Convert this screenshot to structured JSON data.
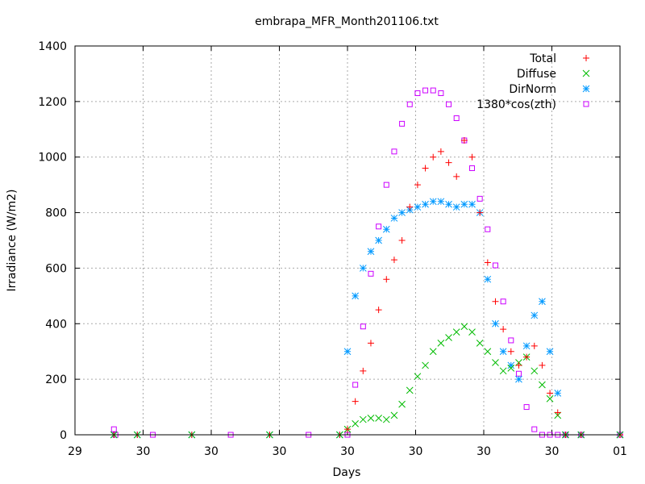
{
  "chart_data": {
    "type": "scatter",
    "title": "embrapa_MFR_Month201106.txt",
    "xlabel": "Days",
    "ylabel": "Irradiance (W/m2)",
    "ylim": [
      0,
      1400
    ],
    "xlim": [
      0,
      7
    ],
    "yticks": [
      0,
      200,
      400,
      600,
      800,
      1000,
      1200,
      1400
    ],
    "xtick_labels": [
      "29",
      "30",
      "30",
      "30",
      "30",
      "30",
      "30",
      "30",
      "01"
    ],
    "grid": true,
    "legend_position": "top-right",
    "series": [
      {
        "name": "Total",
        "color": "#ff0000",
        "marker": "plus",
        "x": [
          0.5,
          0.8,
          1.5,
          2.5,
          3.4,
          3.5,
          3.6,
          3.7,
          3.8,
          3.9,
          4.0,
          4.1,
          4.2,
          4.3,
          4.4,
          4.5,
          4.6,
          4.7,
          4.8,
          4.9,
          5.0,
          5.1,
          5.2,
          5.3,
          5.4,
          5.5,
          5.6,
          5.7,
          5.8,
          5.9,
          6.0,
          6.1,
          6.2,
          6.3,
          6.5,
          7.0
        ],
        "y": [
          0,
          0,
          0,
          0,
          0,
          20,
          120,
          230,
          330,
          450,
          560,
          630,
          700,
          820,
          900,
          960,
          1000,
          1020,
          980,
          930,
          1060,
          1000,
          800,
          620,
          480,
          380,
          300,
          250,
          280,
          320,
          250,
          150,
          80,
          0,
          0,
          0
        ]
      },
      {
        "name": "Diffuse",
        "color": "#00bb00",
        "marker": "x",
        "x": [
          0.5,
          0.8,
          1.5,
          2.5,
          3.4,
          3.5,
          3.6,
          3.7,
          3.8,
          3.9,
          4.0,
          4.1,
          4.2,
          4.3,
          4.4,
          4.5,
          4.6,
          4.7,
          4.8,
          4.9,
          5.0,
          5.1,
          5.2,
          5.3,
          5.4,
          5.5,
          5.6,
          5.7,
          5.8,
          5.9,
          6.0,
          6.1,
          6.2,
          6.3,
          6.5,
          7.0
        ],
        "y": [
          0,
          0,
          0,
          0,
          0,
          20,
          40,
          55,
          60,
          60,
          55,
          70,
          110,
          160,
          210,
          250,
          300,
          330,
          350,
          370,
          390,
          370,
          330,
          300,
          260,
          230,
          240,
          260,
          280,
          230,
          180,
          130,
          70,
          0,
          0,
          0
        ]
      },
      {
        "name": "DirNorm",
        "color": "#0099ff",
        "marker": "star",
        "x": [
          0.5,
          0.8,
          1.5,
          2.5,
          3.4,
          3.5,
          3.6,
          3.7,
          3.8,
          3.9,
          4.0,
          4.1,
          4.2,
          4.3,
          4.4,
          4.5,
          4.6,
          4.7,
          4.8,
          4.9,
          5.0,
          5.1,
          5.2,
          5.3,
          5.4,
          5.5,
          5.6,
          5.7,
          5.8,
          5.9,
          6.0,
          6.1,
          6.2,
          6.3,
          6.5,
          7.0
        ],
        "y": [
          0,
          0,
          0,
          0,
          0,
          300,
          500,
          600,
          660,
          700,
          740,
          780,
          800,
          810,
          820,
          830,
          840,
          840,
          830,
          820,
          830,
          830,
          800,
          560,
          400,
          300,
          250,
          200,
          320,
          430,
          480,
          300,
          150,
          0,
          0,
          0
        ]
      },
      {
        "name": "1380*cos(zth)",
        "color": "#cc00ff",
        "marker": "square",
        "x": [
          0.5,
          0.52,
          1.0,
          2.0,
          3.0,
          3.5,
          3.6,
          3.7,
          3.8,
          3.9,
          4.0,
          4.1,
          4.2,
          4.3,
          4.4,
          4.5,
          4.6,
          4.7,
          4.8,
          4.9,
          5.0,
          5.1,
          5.2,
          5.3,
          5.4,
          5.5,
          5.6,
          5.7,
          5.8,
          5.9,
          6.0,
          6.1,
          6.2,
          6.3,
          6.5,
          7.0
        ],
        "y": [
          20,
          0,
          0,
          0,
          0,
          0,
          180,
          390,
          580,
          750,
          900,
          1020,
          1120,
          1190,
          1230,
          1240,
          1240,
          1230,
          1190,
          1140,
          1060,
          960,
          850,
          740,
          610,
          480,
          340,
          220,
          100,
          20,
          0,
          0,
          0,
          0,
          0,
          0
        ]
      }
    ]
  }
}
